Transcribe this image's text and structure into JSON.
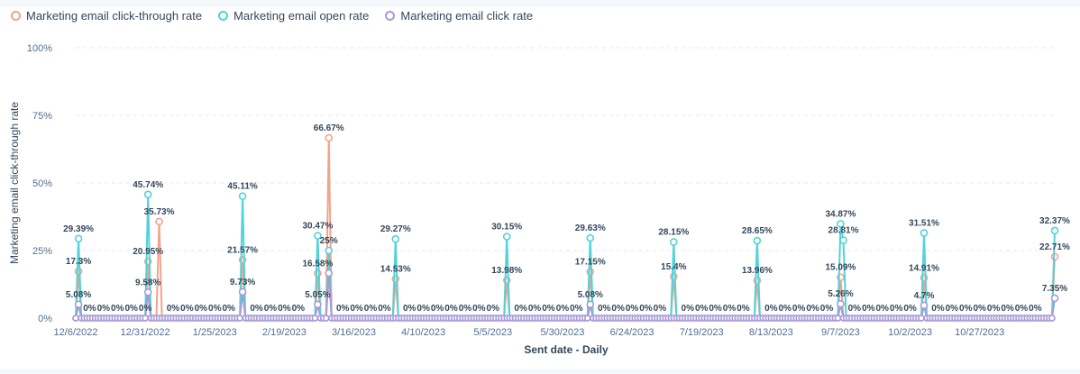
{
  "legend": [
    {
      "name": "Marketing email click-through rate",
      "color": "#f2a38c"
    },
    {
      "name": "Marketing email open rate",
      "color": "#51d3d9"
    },
    {
      "name": "Marketing email click rate",
      "color": "#a89ad8"
    }
  ],
  "chart_data": {
    "type": "line",
    "ylabel": "Marketing email click-through rate",
    "xlabel": "Sent date - Daily",
    "ylim": [
      0,
      100
    ],
    "y_ticks": [
      "0%",
      "25%",
      "50%",
      "75%",
      "100%"
    ],
    "x_range": [
      "2022-12-06",
      "2023-11-23"
    ],
    "x_ticks": [
      {
        "date": "2022-12-06",
        "label": "12/6/2022"
      },
      {
        "date": "2022-12-31",
        "label": "12/31/2022"
      },
      {
        "date": "2023-01-25",
        "label": "1/25/2023"
      },
      {
        "date": "2023-02-19",
        "label": "2/19/2023"
      },
      {
        "date": "2023-03-16",
        "label": "3/16/2023"
      },
      {
        "date": "2023-04-10",
        "label": "4/10/2023"
      },
      {
        "date": "2023-05-05",
        "label": "5/5/2023"
      },
      {
        "date": "2023-05-30",
        "label": "5/30/2023"
      },
      {
        "date": "2023-06-24",
        "label": "6/24/2023"
      },
      {
        "date": "2023-07-19",
        "label": "7/19/2023"
      },
      {
        "date": "2023-08-13",
        "label": "8/13/2023"
      },
      {
        "date": "2023-09-07",
        "label": "9/7/2023"
      },
      {
        "date": "2023-10-02",
        "label": "10/2/2023"
      },
      {
        "date": "2023-10-27",
        "label": "10/27/2023"
      }
    ],
    "grid": true,
    "legend_position": "top-left",
    "series": [
      {
        "name": "Marketing email click-through rate",
        "color": "#f2a38c",
        "points": [
          {
            "date": "2022-12-07",
            "value": 17.3,
            "label": "17.3%"
          },
          {
            "date": "2023-01-01",
            "value": 20.95,
            "label": "20.95%"
          },
          {
            "date": "2023-01-05",
            "value": 35.73,
            "label": "35.73%"
          },
          {
            "date": "2023-02-04",
            "value": 21.57,
            "label": "21.57%"
          },
          {
            "date": "2023-03-03",
            "value": 16.58,
            "label": "16.58%"
          },
          {
            "date": "2023-03-07",
            "value": 66.67,
            "label": "66.67%"
          },
          {
            "date": "2023-03-31",
            "value": 14.53,
            "label": "14.53%"
          },
          {
            "date": "2023-05-10",
            "value": 13.98,
            "label": "13.98%"
          },
          {
            "date": "2023-06-09",
            "value": 17.15,
            "label": "17.15%"
          },
          {
            "date": "2023-07-09",
            "value": 15.4,
            "label": "15.4%"
          },
          {
            "date": "2023-08-08",
            "value": 13.96,
            "label": "13.96%"
          },
          {
            "date": "2023-09-07",
            "value": 15.09,
            "label": "15.09%"
          },
          {
            "date": "2023-10-07",
            "value": 14.91,
            "label": "14.91%"
          },
          {
            "date": "2023-11-23",
            "value": 22.71,
            "label": "22.71%"
          }
        ]
      },
      {
        "name": "Marketing email open rate",
        "color": "#51d3d9",
        "points": [
          {
            "date": "2022-12-07",
            "value": 29.39,
            "label": "29.39%"
          },
          {
            "date": "2023-01-01",
            "value": 45.74,
            "label": "45.74%"
          },
          {
            "date": "2023-02-04",
            "value": 45.11,
            "label": "45.11%"
          },
          {
            "date": "2023-03-03",
            "value": 30.47,
            "label": "30.47%"
          },
          {
            "date": "2023-03-07",
            "value": 25,
            "label": "25%"
          },
          {
            "date": "2023-03-31",
            "value": 29.27,
            "label": "29.27%"
          },
          {
            "date": "2023-05-10",
            "value": 30.15,
            "label": "30.15%"
          },
          {
            "date": "2023-06-09",
            "value": 29.63,
            "label": "29.63%"
          },
          {
            "date": "2023-07-09",
            "value": 28.15,
            "label": "28.15%"
          },
          {
            "date": "2023-08-08",
            "value": 28.65,
            "label": "28.65%"
          },
          {
            "date": "2023-09-07",
            "value": 34.87,
            "label": "34.87%"
          },
          {
            "date": "2023-09-08",
            "value": 28.81,
            "label": "28.81%"
          },
          {
            "date": "2023-10-07",
            "value": 31.51,
            "label": "31.51%"
          },
          {
            "date": "2023-11-23",
            "value": 32.37,
            "label": "32.37%"
          }
        ]
      },
      {
        "name": "Marketing email click rate",
        "color": "#a89ad8",
        "points": [
          {
            "date": "2022-12-07",
            "value": 5.08,
            "label": "5.08%"
          },
          {
            "date": "2023-01-01",
            "value": 9.58,
            "label": "9.58%"
          },
          {
            "date": "2023-02-04",
            "value": 9.73,
            "label": "9.73%"
          },
          {
            "date": "2023-03-03",
            "value": 5.05,
            "label": "5.05%"
          },
          {
            "date": "2023-03-07",
            "value": 16.67,
            "label": ""
          },
          {
            "date": "2023-06-09",
            "value": 5.08,
            "label": "5.08%"
          },
          {
            "date": "2023-09-07",
            "value": 5.26,
            "label": "5.26%"
          },
          {
            "date": "2023-10-07",
            "value": 4.7,
            "label": "4.7%"
          },
          {
            "date": "2023-11-23",
            "value": 7.35,
            "label": "7.35%"
          }
        ]
      }
    ],
    "zero_labels": {
      "text": "0%",
      "dates": [
        "2022-12-11",
        "2022-12-16",
        "2022-12-21",
        "2022-12-26",
        "2022-12-31",
        "2023-01-10",
        "2023-01-15",
        "2023-01-20",
        "2023-01-25",
        "2023-01-30",
        "2023-02-09",
        "2023-02-14",
        "2023-02-19",
        "2023-02-24",
        "2023-03-12",
        "2023-03-17",
        "2023-03-22",
        "2023-03-27",
        "2023-04-05",
        "2023-04-10",
        "2023-04-15",
        "2023-04-20",
        "2023-04-25",
        "2023-04-30",
        "2023-05-05",
        "2023-05-15",
        "2023-05-20",
        "2023-05-25",
        "2023-05-30",
        "2023-06-04",
        "2023-06-14",
        "2023-06-19",
        "2023-06-24",
        "2023-06-29",
        "2023-07-04",
        "2023-07-14",
        "2023-07-19",
        "2023-07-24",
        "2023-07-29",
        "2023-08-03",
        "2023-08-13",
        "2023-08-18",
        "2023-08-23",
        "2023-08-28",
        "2023-09-02",
        "2023-09-12",
        "2023-09-17",
        "2023-09-22",
        "2023-09-27",
        "2023-10-02",
        "2023-10-12",
        "2023-10-17",
        "2023-10-22",
        "2023-10-27",
        "2023-11-01",
        "2023-11-06",
        "2023-11-11",
        "2023-11-16"
      ]
    }
  }
}
